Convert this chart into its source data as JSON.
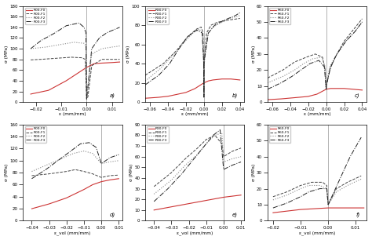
{
  "panels": [
    {
      "label": "a)",
      "row": 0,
      "col": 0,
      "prefix": "R00",
      "xlabel": "ε (mm/mm)",
      "ylabel": "σ (MPa)",
      "xlim": [
        -0.025,
        0.014
      ],
      "ylim": [
        0,
        180
      ],
      "xticks": [
        -0.02,
        -0.01,
        0,
        0.01
      ],
      "yticks": [
        0,
        20,
        40,
        60,
        80,
        100,
        120,
        140,
        160,
        180
      ],
      "type": "stress_strain"
    },
    {
      "label": "b)",
      "row": 0,
      "col": 1,
      "prefix": "R30",
      "xlabel": "ε (mm/mm)",
      "ylabel": "σ (MPa)",
      "xlim": [
        -0.065,
        0.045
      ],
      "ylim": [
        0,
        100
      ],
      "xticks": [
        -0.06,
        -0.04,
        -0.02,
        0,
        0.02,
        0.04
      ],
      "yticks": [
        0,
        20,
        40,
        60,
        80,
        100
      ],
      "type": "stress_strain"
    },
    {
      "label": "c)",
      "row": 0,
      "col": 2,
      "prefix": "R60",
      "xlabel": "ε (mm/mm)",
      "ylabel": "σ (MPa)",
      "xlim": [
        -0.065,
        0.045
      ],
      "ylim": [
        0,
        60
      ],
      "xticks": [
        -0.06,
        -0.04,
        -0.02,
        0,
        0.02,
        0.04
      ],
      "yticks": [
        0,
        10,
        20,
        30,
        40,
        50,
        60
      ],
      "type": "stress_strain"
    },
    {
      "label": "d)",
      "row": 1,
      "col": 0,
      "prefix": "R00",
      "xlabel": "ε_vol (mm/mm)",
      "ylabel": "σ (MPa)",
      "xlim": [
        -0.045,
        0.012
      ],
      "ylim": [
        0,
        160
      ],
      "xticks": [
        -0.04,
        -0.03,
        -0.02,
        -0.01,
        0,
        0.01
      ],
      "yticks": [
        0,
        20,
        40,
        60,
        80,
        100,
        120,
        140,
        160
      ],
      "type": "volumetric"
    },
    {
      "label": "e)",
      "row": 1,
      "col": 1,
      "prefix": "R30",
      "xlabel": "ε_vol (mm/mm)",
      "ylabel": "σ (MPa)",
      "xlim": [
        -0.045,
        0.012
      ],
      "ylim": [
        0,
        90
      ],
      "xticks": [
        -0.04,
        -0.03,
        -0.02,
        -0.01,
        0,
        0.01
      ],
      "yticks": [
        0,
        10,
        20,
        30,
        40,
        50,
        60,
        70,
        80,
        90
      ],
      "type": "volumetric"
    },
    {
      "label": "f)",
      "row": 1,
      "col": 2,
      "prefix": "R60",
      "xlabel": "ε_vol (mm/mm)",
      "ylabel": "σ (MPa)",
      "xlim": [
        -0.022,
        0.014
      ],
      "ylim": [
        0,
        60
      ],
      "xticks": [
        -0.02,
        -0.01,
        0,
        0.01
      ],
      "yticks": [
        0,
        10,
        20,
        30,
        40,
        50,
        60
      ],
      "type": "volumetric"
    }
  ],
  "line_styles": {
    "F0": {
      "color": "#cc3333",
      "ls": "-",
      "lw": 0.8
    },
    "F1": {
      "color": "#444444",
      "ls": "--",
      "lw": 0.7
    },
    "F2": {
      "color": "#888888",
      "ls": ":",
      "lw": 0.8
    },
    "F3": {
      "color": "#222222",
      "ls": "-.",
      "lw": 0.7
    }
  },
  "background": "#ffffff",
  "fig_bg": "#ffffff"
}
